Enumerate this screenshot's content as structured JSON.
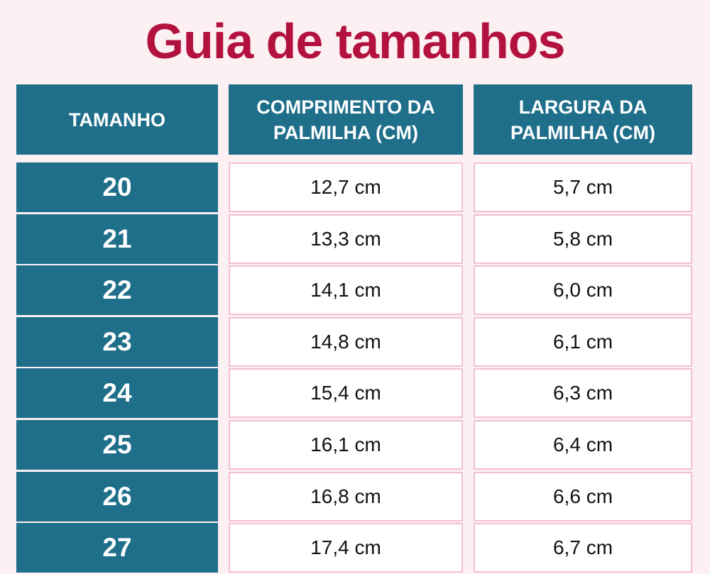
{
  "title": "Guia de tamanhos",
  "table": {
    "headers": [
      "TAMANHO",
      "COMPRIMENTO DA PALMILHA (CM)",
      "LARGURA DA PALMILHA (CM)"
    ],
    "rows": [
      [
        "20",
        "12,7 cm",
        "5,7 cm"
      ],
      [
        "21",
        "13,3 cm",
        "5,8 cm"
      ],
      [
        "22",
        "14,1 cm",
        "6,0 cm"
      ],
      [
        "23",
        "14,8 cm",
        "6,1 cm"
      ],
      [
        "24",
        "15,4 cm",
        "6,3 cm"
      ],
      [
        "25",
        "16,1 cm",
        "6,4 cm"
      ],
      [
        "26",
        "16,8 cm",
        "6,6 cm"
      ],
      [
        "27",
        "17,4 cm",
        "6,7 cm"
      ]
    ]
  }
}
